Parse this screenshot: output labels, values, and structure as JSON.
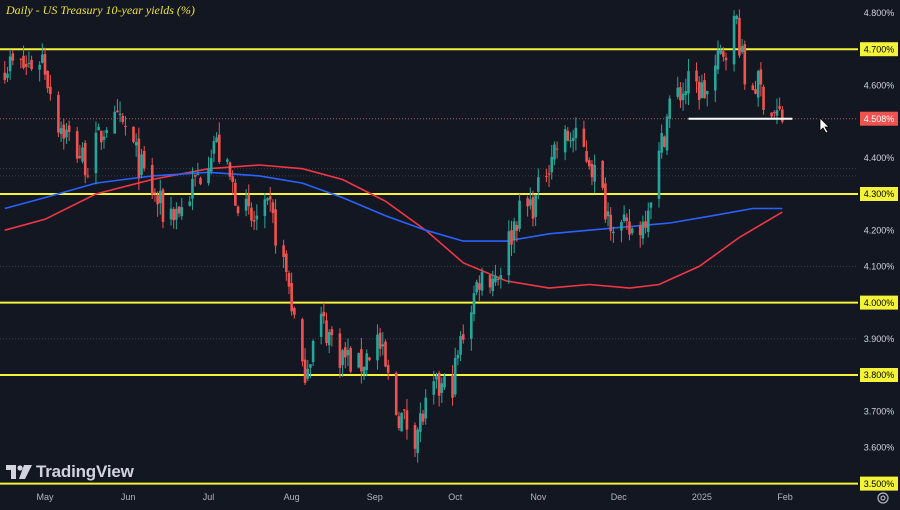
{
  "header": {
    "title": "Daily - US Treasury 10-year yields (%)"
  },
  "brand": {
    "name": "TradingView"
  },
  "colors": {
    "background": "#131722",
    "up": "#26a69a",
    "down": "#ef5350",
    "level_line": "#f5f23a",
    "ma_red": "#f23645",
    "ma_blue": "#2962ff",
    "support_line": "#ffffff"
  },
  "chart_data": {
    "type": "candlestick",
    "title": "Daily - US Treasury 10-year yields (%)",
    "y_axis": {
      "side": "right",
      "ticks": [
        "4.800%",
        "4.600%",
        "4.400%",
        "4.200%",
        "4.100%",
        "3.900%",
        "3.700%",
        "3.600%"
      ],
      "range": [
        3.5,
        4.82
      ]
    },
    "x_axis": {
      "ticks": [
        "May",
        "Jun",
        "Jul",
        "Aug",
        "Sep",
        "Oct",
        "Nov",
        "Dec",
        "2025",
        "Feb"
      ]
    },
    "horizontal_levels": [
      4.7,
      4.3,
      4.0,
      3.8,
      3.5
    ],
    "level_labels": [
      "4.700%",
      "4.300%",
      "4.000%",
      "3.800%",
      "3.500%"
    ],
    "dotted_levels": [
      4.37,
      4.35,
      4.1,
      3.9
    ],
    "support_line": {
      "value": 4.508,
      "label": "4.508%",
      "from": "2024-12-27",
      "to": "2025-01-31"
    },
    "close_path": [
      [
        "2024-04-16",
        4.66
      ],
      [
        "2024-04-24",
        4.65
      ],
      [
        "2024-04-30",
        4.68
      ],
      [
        "2024-05-06",
        4.5
      ],
      [
        "2024-05-13",
        4.42
      ],
      [
        "2024-05-17",
        4.38
      ],
      [
        "2024-05-24",
        4.5
      ],
      [
        "2024-05-31",
        4.48
      ],
      [
        "2024-06-07",
        4.35
      ],
      [
        "2024-06-14",
        4.25
      ],
      [
        "2024-06-21",
        4.26
      ],
      [
        "2024-06-28",
        4.36
      ],
      [
        "2024-07-03",
        4.45
      ],
      [
        "2024-07-10",
        4.32
      ],
      [
        "2024-07-17",
        4.22
      ],
      [
        "2024-07-24",
        4.25
      ],
      [
        "2024-07-31",
        4.05
      ],
      [
        "2024-08-05",
        3.8
      ],
      [
        "2024-08-12",
        3.95
      ],
      [
        "2024-08-19",
        3.86
      ],
      [
        "2024-08-26",
        3.82
      ],
      [
        "2024-09-02",
        3.9
      ],
      [
        "2024-09-09",
        3.7
      ],
      [
        "2024-09-16",
        3.64
      ],
      [
        "2024-09-23",
        3.75
      ],
      [
        "2024-09-30",
        3.78
      ],
      [
        "2024-10-04",
        3.92
      ],
      [
        "2024-10-10",
        4.07
      ],
      [
        "2024-10-17",
        4.08
      ],
      [
        "2024-10-24",
        4.24
      ],
      [
        "2024-10-31",
        4.28
      ],
      [
        "2024-11-06",
        4.42
      ],
      [
        "2024-11-13",
        4.46
      ],
      [
        "2024-11-20",
        4.4
      ],
      [
        "2024-11-27",
        4.25
      ],
      [
        "2024-12-04",
        4.19
      ],
      [
        "2024-12-10",
        4.22
      ],
      [
        "2024-12-16",
        4.4
      ],
      [
        "2024-12-20",
        4.55
      ],
      [
        "2024-12-27",
        4.6
      ],
      [
        "2025-01-03",
        4.58
      ],
      [
        "2025-01-08",
        4.68
      ],
      [
        "2025-01-14",
        4.78
      ],
      [
        "2025-01-17",
        4.61
      ],
      [
        "2025-01-22",
        4.6
      ],
      [
        "2025-01-27",
        4.53
      ],
      [
        "2025-01-31",
        4.51
      ]
    ],
    "series": [
      {
        "name": "",
        "points": [
          [
            "2024-04-16",
            4.2
          ],
          [
            "2024-05-01",
            4.23
          ],
          [
            "2024-05-20",
            4.3
          ],
          [
            "2024-06-10",
            4.34
          ],
          [
            "2024-07-01",
            4.37
          ],
          [
            "2024-07-20",
            4.38
          ],
          [
            "2024-08-05",
            4.37
          ],
          [
            "2024-08-20",
            4.34
          ],
          [
            "2024-09-05",
            4.28
          ],
          [
            "2024-09-20",
            4.2
          ],
          [
            "2024-10-04",
            4.11
          ],
          [
            "2024-10-20",
            4.06
          ],
          [
            "2024-11-05",
            4.04
          ],
          [
            "2024-11-20",
            4.05
          ],
          [
            "2024-12-05",
            4.04
          ],
          [
            "2024-12-16",
            4.05
          ],
          [
            "2024-12-31",
            4.1
          ],
          [
            "2025-01-15",
            4.18
          ],
          [
            "2025-01-31",
            4.25
          ]
        ]
      },
      {
        "name": "",
        "points": [
          [
            "2024-04-16",
            4.26
          ],
          [
            "2024-05-01",
            4.29
          ],
          [
            "2024-05-20",
            4.33
          ],
          [
            "2024-06-10",
            4.35
          ],
          [
            "2024-07-01",
            4.36
          ],
          [
            "2024-07-20",
            4.35
          ],
          [
            "2024-08-05",
            4.33
          ],
          [
            "2024-08-20",
            4.29
          ],
          [
            "2024-09-05",
            4.24
          ],
          [
            "2024-09-20",
            4.2
          ],
          [
            "2024-10-04",
            4.17
          ],
          [
            "2024-10-20",
            4.17
          ],
          [
            "2024-11-05",
            4.19
          ],
          [
            "2024-11-20",
            4.2
          ],
          [
            "2024-12-05",
            4.21
          ],
          [
            "2024-12-20",
            4.22
          ],
          [
            "2025-01-05",
            4.24
          ],
          [
            "2025-01-20",
            4.26
          ],
          [
            "2025-01-31",
            4.26
          ]
        ]
      }
    ]
  }
}
